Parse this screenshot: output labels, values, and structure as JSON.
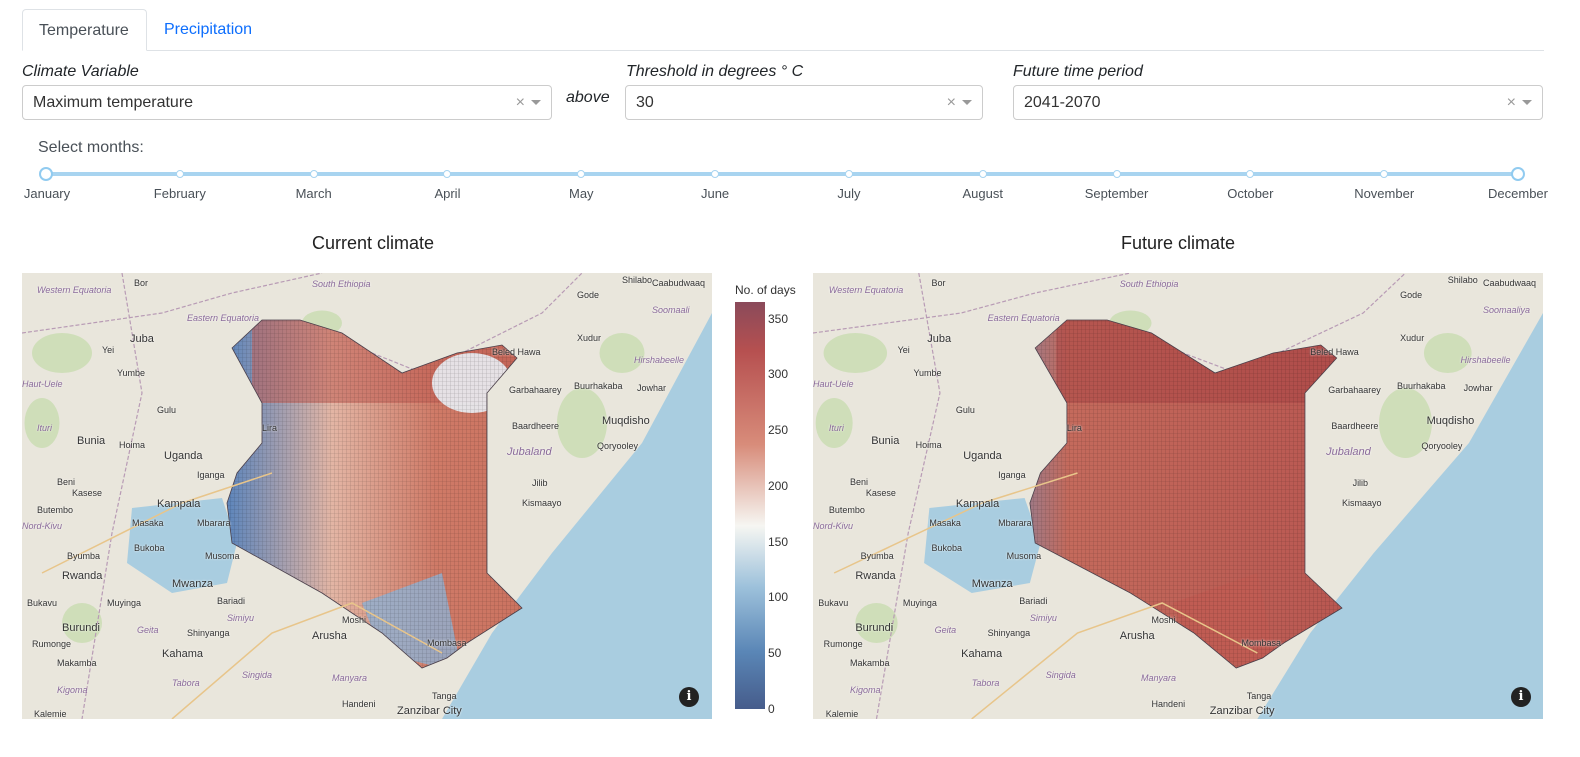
{
  "tabs": [
    {
      "label": "Temperature",
      "active": true
    },
    {
      "label": "Precipitation",
      "active": false
    }
  ],
  "controls": {
    "climate_variable": {
      "label": "Climate Variable",
      "value": "Maximum temperature"
    },
    "connector": "above",
    "threshold": {
      "label": "Threshold in degrees ° C",
      "value": "30"
    },
    "future_period": {
      "label": "Future time period",
      "value": "2041-2070"
    },
    "clear_glyph": "×"
  },
  "months": {
    "label": "Select months:",
    "items": [
      "January",
      "February",
      "March",
      "April",
      "May",
      "June",
      "July",
      "August",
      "September",
      "October",
      "November",
      "December"
    ],
    "selected_range": [
      "January",
      "December"
    ]
  },
  "maps": {
    "current": {
      "title": "Current climate",
      "place_labels": [
        "Shilabo",
        "Caabudwaaq",
        "Bor",
        "Gode",
        "Western Equatoria",
        "South Ethiopia",
        "Soomaali",
        "Juba",
        "Eastern Equatoria",
        "Beled Hawa",
        "Xudur",
        "Yei",
        "Hirshabeelle",
        "Haut-Uele",
        "Yumbe",
        "Garbahaarey",
        "Buurhakaba",
        "Jowhar",
        "Gulu",
        "Muqdisho",
        "Ituri",
        "Lira",
        "Baardheere",
        "Bunia",
        "Hoima",
        "Uganda",
        "Jubaland",
        "Qoryooley",
        "Beni",
        "Kasese",
        "Iganga",
        "Jilib",
        "Kampala",
        "Kismaayo",
        "Butembo",
        "Masaka",
        "Mbarara",
        "Nord-Kivu",
        "Bukoba",
        "Musoma",
        "Byumba",
        "Rwanda",
        "Mwanza",
        "Bukavu",
        "Muyinga",
        "Bariadi",
        "Arusha",
        "Moshi",
        "Burundi",
        "Geita",
        "Simiyu",
        "Shinyanga",
        "Mombasa",
        "Rumonge",
        "Kahama",
        "Manyara",
        "Makamba",
        "Tabora",
        "Singida",
        "Tanga",
        "Kigoma",
        "Handeni",
        "Zanzibar City",
        "Kalemie"
      ]
    },
    "future": {
      "title": "Future climate",
      "place_labels": [
        "Shilabo",
        "Caabudwaaq",
        "Bor",
        "Gode",
        "Western Equatoria",
        "South Ethiopia",
        "Soomaaliya",
        "Juba",
        "Eastern Equatoria",
        "Beled Hawa",
        "Xudur",
        "Yei",
        "Hirshabeelle",
        "Haut-Uele",
        "Yumbe",
        "Garbahaarey",
        "Buurhakaba",
        "Jowhar",
        "Gulu",
        "Muqdisho",
        "Ituri",
        "Lira",
        "Baardheere",
        "Bunia",
        "Hoima",
        "Uganda",
        "Jubaland",
        "Qoryooley",
        "Beni",
        "Kasese",
        "Iganga",
        "Jilib",
        "Kampala",
        "Kismaayo",
        "Butembo",
        "Masaka",
        "Mbarara",
        "Nord-Kivu",
        "Bukoba",
        "Musoma",
        "Byumba",
        "Rwanda",
        "Mwanza",
        "Bukavu",
        "Muyinga",
        "Bariadi",
        "Arusha",
        "Moshi",
        "Burundi",
        "Geita",
        "Simiyu",
        "Shinyanga",
        "Mombasa",
        "Rumonge",
        "Kahama",
        "Manyara",
        "Makamba",
        "Tabora",
        "Singida",
        "Tanga",
        "Kigoma",
        "Handeni",
        "Zanzibar City",
        "Kalemie"
      ]
    },
    "info_glyph": "i"
  },
  "colorbar": {
    "title": "No. of days",
    "ticks": [
      "350",
      "300",
      "250",
      "200",
      "150",
      "100",
      "50",
      "0"
    ],
    "tick_values": [
      350,
      300,
      250,
      200,
      150,
      100,
      50,
      0
    ],
    "range": [
      0,
      365
    ],
    "colors": {
      "high": "#8a4a5a",
      "upper": "#b65050",
      "mid_high": "#d88c7a",
      "mid": "#f6f6f2",
      "mid_low": "#9dc1db",
      "low": "#5a86b6",
      "min": "#465c8b"
    }
  },
  "colors": {
    "accent": "#0d6efd",
    "slider": "#a8d4f0",
    "water": "#a9cde0",
    "land": "#e9e6dc",
    "forest": "#c8dcb0"
  }
}
